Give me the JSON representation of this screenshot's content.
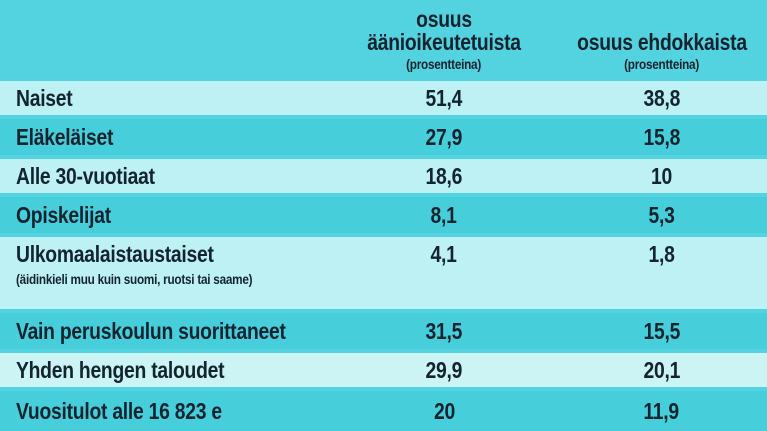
{
  "palette": {
    "background": "#53d2df",
    "row_light": "#bdf1f3",
    "row_dark": "#46cedb",
    "text": "#13242f"
  },
  "header": {
    "voters_column": {
      "title": "osuus äänioikeutetuista",
      "subtitle": "(prosentteina)"
    },
    "candidates_column": {
      "title": "osuus ehdokkaista",
      "subtitle": "(prosentteina)"
    }
  },
  "rows": [
    {
      "label": "Naiset",
      "voters": "51,4",
      "candidates": "38,8"
    },
    {
      "label": "Eläkeläiset",
      "voters": "27,9",
      "candidates": "15,8"
    },
    {
      "label": "Alle 30-vuotiaat",
      "voters": "18,6",
      "candidates": "10"
    },
    {
      "label": "Opiskelijat",
      "voters": "8,1",
      "candidates": "5,3"
    },
    {
      "label": "Ulkomaalaistaustaiset",
      "sublabel": "(äidinkieli muu kuin suomi, ruotsi tai saame)",
      "voters": "4,1",
      "candidates": "1,8"
    },
    {
      "label": "Vain peruskoulun suorittaneet",
      "voters": "31,5",
      "candidates": "15,5"
    },
    {
      "label": "Yhden hengen taloudet",
      "voters": "29,9",
      "candidates": "20,1"
    },
    {
      "label": "Vuositulot alle 16 823 e",
      "voters": "20",
      "candidates": "11,9"
    }
  ],
  "chart_data": {
    "type": "table",
    "columns": [
      "",
      "osuus äänioikeutetuista (prosentteina)",
      "osuus ehdokkaista (prosentteina)"
    ],
    "rows": [
      [
        "Naiset",
        51.4,
        38.8
      ],
      [
        "Eläkeläiset",
        27.9,
        15.8
      ],
      [
        "Alle 30-vuotiaat",
        18.6,
        10
      ],
      [
        "Opiskelijat",
        8.1,
        5.3
      ],
      [
        "Ulkomaalaistaustaiset (äidinkieli muu kuin suomi, ruotsi tai saame)",
        4.1,
        1.8
      ],
      [
        "Vain peruskoulun suorittaneet",
        31.5,
        15.5
      ],
      [
        "Yhden hengen taloudet",
        29.9,
        20.1
      ],
      [
        "Vuositulot alle 16 823 e",
        20,
        11.9
      ]
    ]
  }
}
